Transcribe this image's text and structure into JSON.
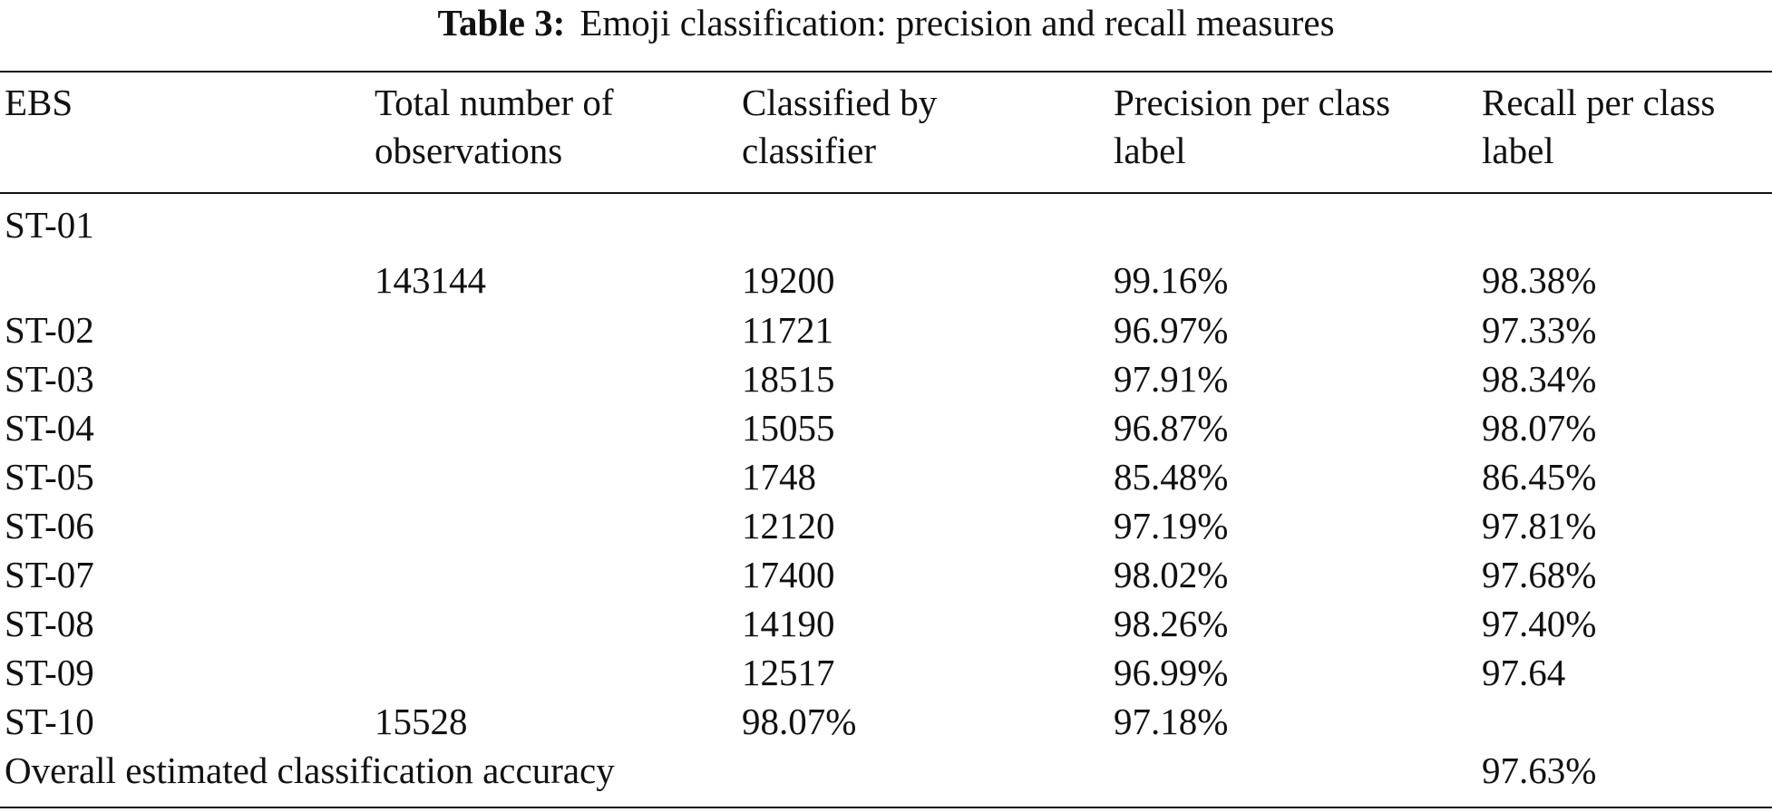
{
  "caption": {
    "label": "Table 3:",
    "text": "Emoji classification: precision and recall measures"
  },
  "headers": {
    "ebs": "EBS",
    "total_line1": "Total number of",
    "total_line2": "observations",
    "classified_line1": "Classified by",
    "classified_line2": "classifier",
    "precision_line1": "Precision per class",
    "precision_line2": "label",
    "recall_line1": "Recall per class",
    "recall_line2": "label"
  },
  "rows": [
    {
      "ebs": "ST-01",
      "total": "",
      "classified": "",
      "precision": "",
      "recall": ""
    },
    {
      "ebs": "",
      "total": "143144",
      "classified": "19200",
      "precision": "99.16%",
      "recall": "98.38%"
    },
    {
      "ebs": "ST-02",
      "total": "",
      "classified": "11721",
      "precision": "96.97%",
      "recall": "97.33%"
    },
    {
      "ebs": "ST-03",
      "total": "",
      "classified": "18515",
      "precision": "97.91%",
      "recall": "98.34%"
    },
    {
      "ebs": "ST-04",
      "total": "",
      "classified": "15055",
      "precision": "96.87%",
      "recall": "98.07%"
    },
    {
      "ebs": "ST-05",
      "total": "",
      "classified": "1748",
      "precision": "85.48%",
      "recall": "86.45%"
    },
    {
      "ebs": "ST-06",
      "total": "",
      "classified": "12120",
      "precision": "97.19%",
      "recall": "97.81%"
    },
    {
      "ebs": "ST-07",
      "total": "",
      "classified": "17400",
      "precision": "98.02%",
      "recall": "97.68%"
    },
    {
      "ebs": "ST-08",
      "total": "",
      "classified": "14190",
      "precision": "98.26%",
      "recall": "97.40%"
    },
    {
      "ebs": "ST-09",
      "total": "",
      "classified": "12517",
      "precision": "96.99%",
      "recall": "97.64"
    },
    {
      "ebs": "ST-10",
      "total": "15528",
      "classified": "98.07%",
      "precision": "97.18%",
      "recall": ""
    }
  ],
  "overall": {
    "label": "Overall estimated classification accuracy",
    "value": "97.63%"
  }
}
